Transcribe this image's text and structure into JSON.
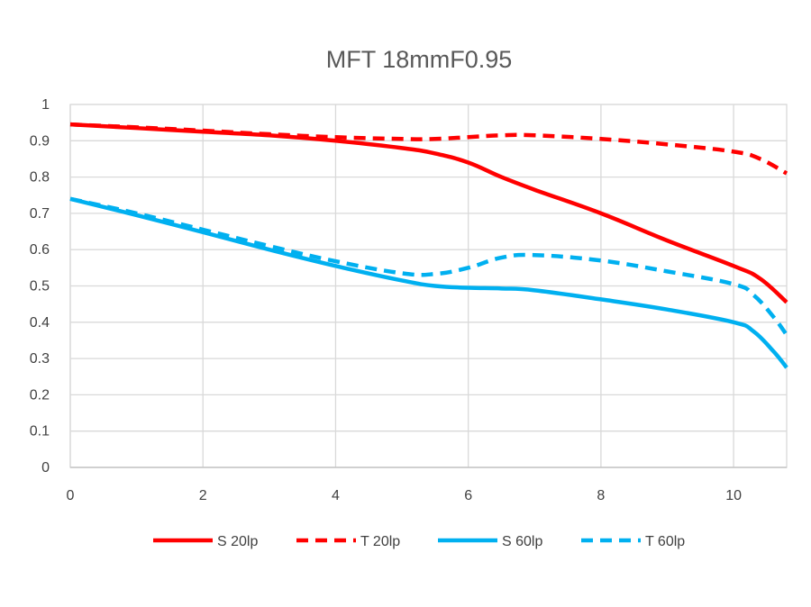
{
  "chart_data": {
    "type": "line",
    "title": "MFT 18mmF0.95",
    "xlabel": "",
    "ylabel": "",
    "xlim": [
      0,
      10.8
    ],
    "ylim": [
      0,
      1
    ],
    "x_ticks": [
      0,
      2,
      4,
      6,
      8,
      10
    ],
    "y_ticks": [
      0,
      0.1,
      0.2,
      0.3,
      0.4,
      0.5,
      0.6,
      0.7,
      0.8,
      0.9,
      1
    ],
    "y_tick_labels": [
      "0",
      "0.1",
      "0.2",
      "0.3",
      "0.4",
      "0.5",
      "0.6",
      "0.7",
      "0.8",
      "0.9",
      "1"
    ],
    "grid": true,
    "legend_position": "bottom",
    "series": [
      {
        "name": "S 20lp",
        "color": "#ff0000",
        "dash": "solid",
        "x": [
          0,
          1,
          2,
          3,
          4,
          5,
          5.5,
          6,
          6.5,
          7,
          8,
          9,
          10,
          10.4,
          10.8
        ],
        "y": [
          0.945,
          0.935,
          0.925,
          0.915,
          0.9,
          0.88,
          0.865,
          0.84,
          0.8,
          0.765,
          0.7,
          0.625,
          0.555,
          0.52,
          0.455
        ]
      },
      {
        "name": "T 20lp",
        "color": "#ff0000",
        "dash": "dashed",
        "x": [
          0,
          1,
          2,
          3,
          4,
          5,
          5.5,
          6,
          6.5,
          7,
          8,
          9,
          10,
          10.4,
          10.8
        ],
        "y": [
          0.945,
          0.937,
          0.928,
          0.918,
          0.91,
          0.905,
          0.905,
          0.91,
          0.915,
          0.915,
          0.905,
          0.89,
          0.87,
          0.85,
          0.81
        ]
      },
      {
        "name": "S 60lp",
        "color": "#00b0f0",
        "dash": "solid",
        "x": [
          0,
          1,
          2,
          3,
          4,
          5,
          5.5,
          6,
          6.5,
          7,
          8,
          9,
          10,
          10.3,
          10.6,
          10.8
        ],
        "y": [
          0.74,
          0.695,
          0.648,
          0.6,
          0.555,
          0.515,
          0.5,
          0.495,
          0.493,
          0.488,
          0.463,
          0.435,
          0.4,
          0.375,
          0.32,
          0.275
        ]
      },
      {
        "name": "T 60lp",
        "color": "#00b0f0",
        "dash": "dashed",
        "x": [
          0,
          1,
          2,
          3,
          4,
          5,
          5.5,
          6,
          6.5,
          7,
          8,
          9,
          10,
          10.3,
          10.6,
          10.8
        ],
        "y": [
          0.74,
          0.7,
          0.655,
          0.61,
          0.568,
          0.535,
          0.533,
          0.55,
          0.578,
          0.585,
          0.57,
          0.54,
          0.505,
          0.475,
          0.415,
          0.365
        ]
      }
    ]
  }
}
